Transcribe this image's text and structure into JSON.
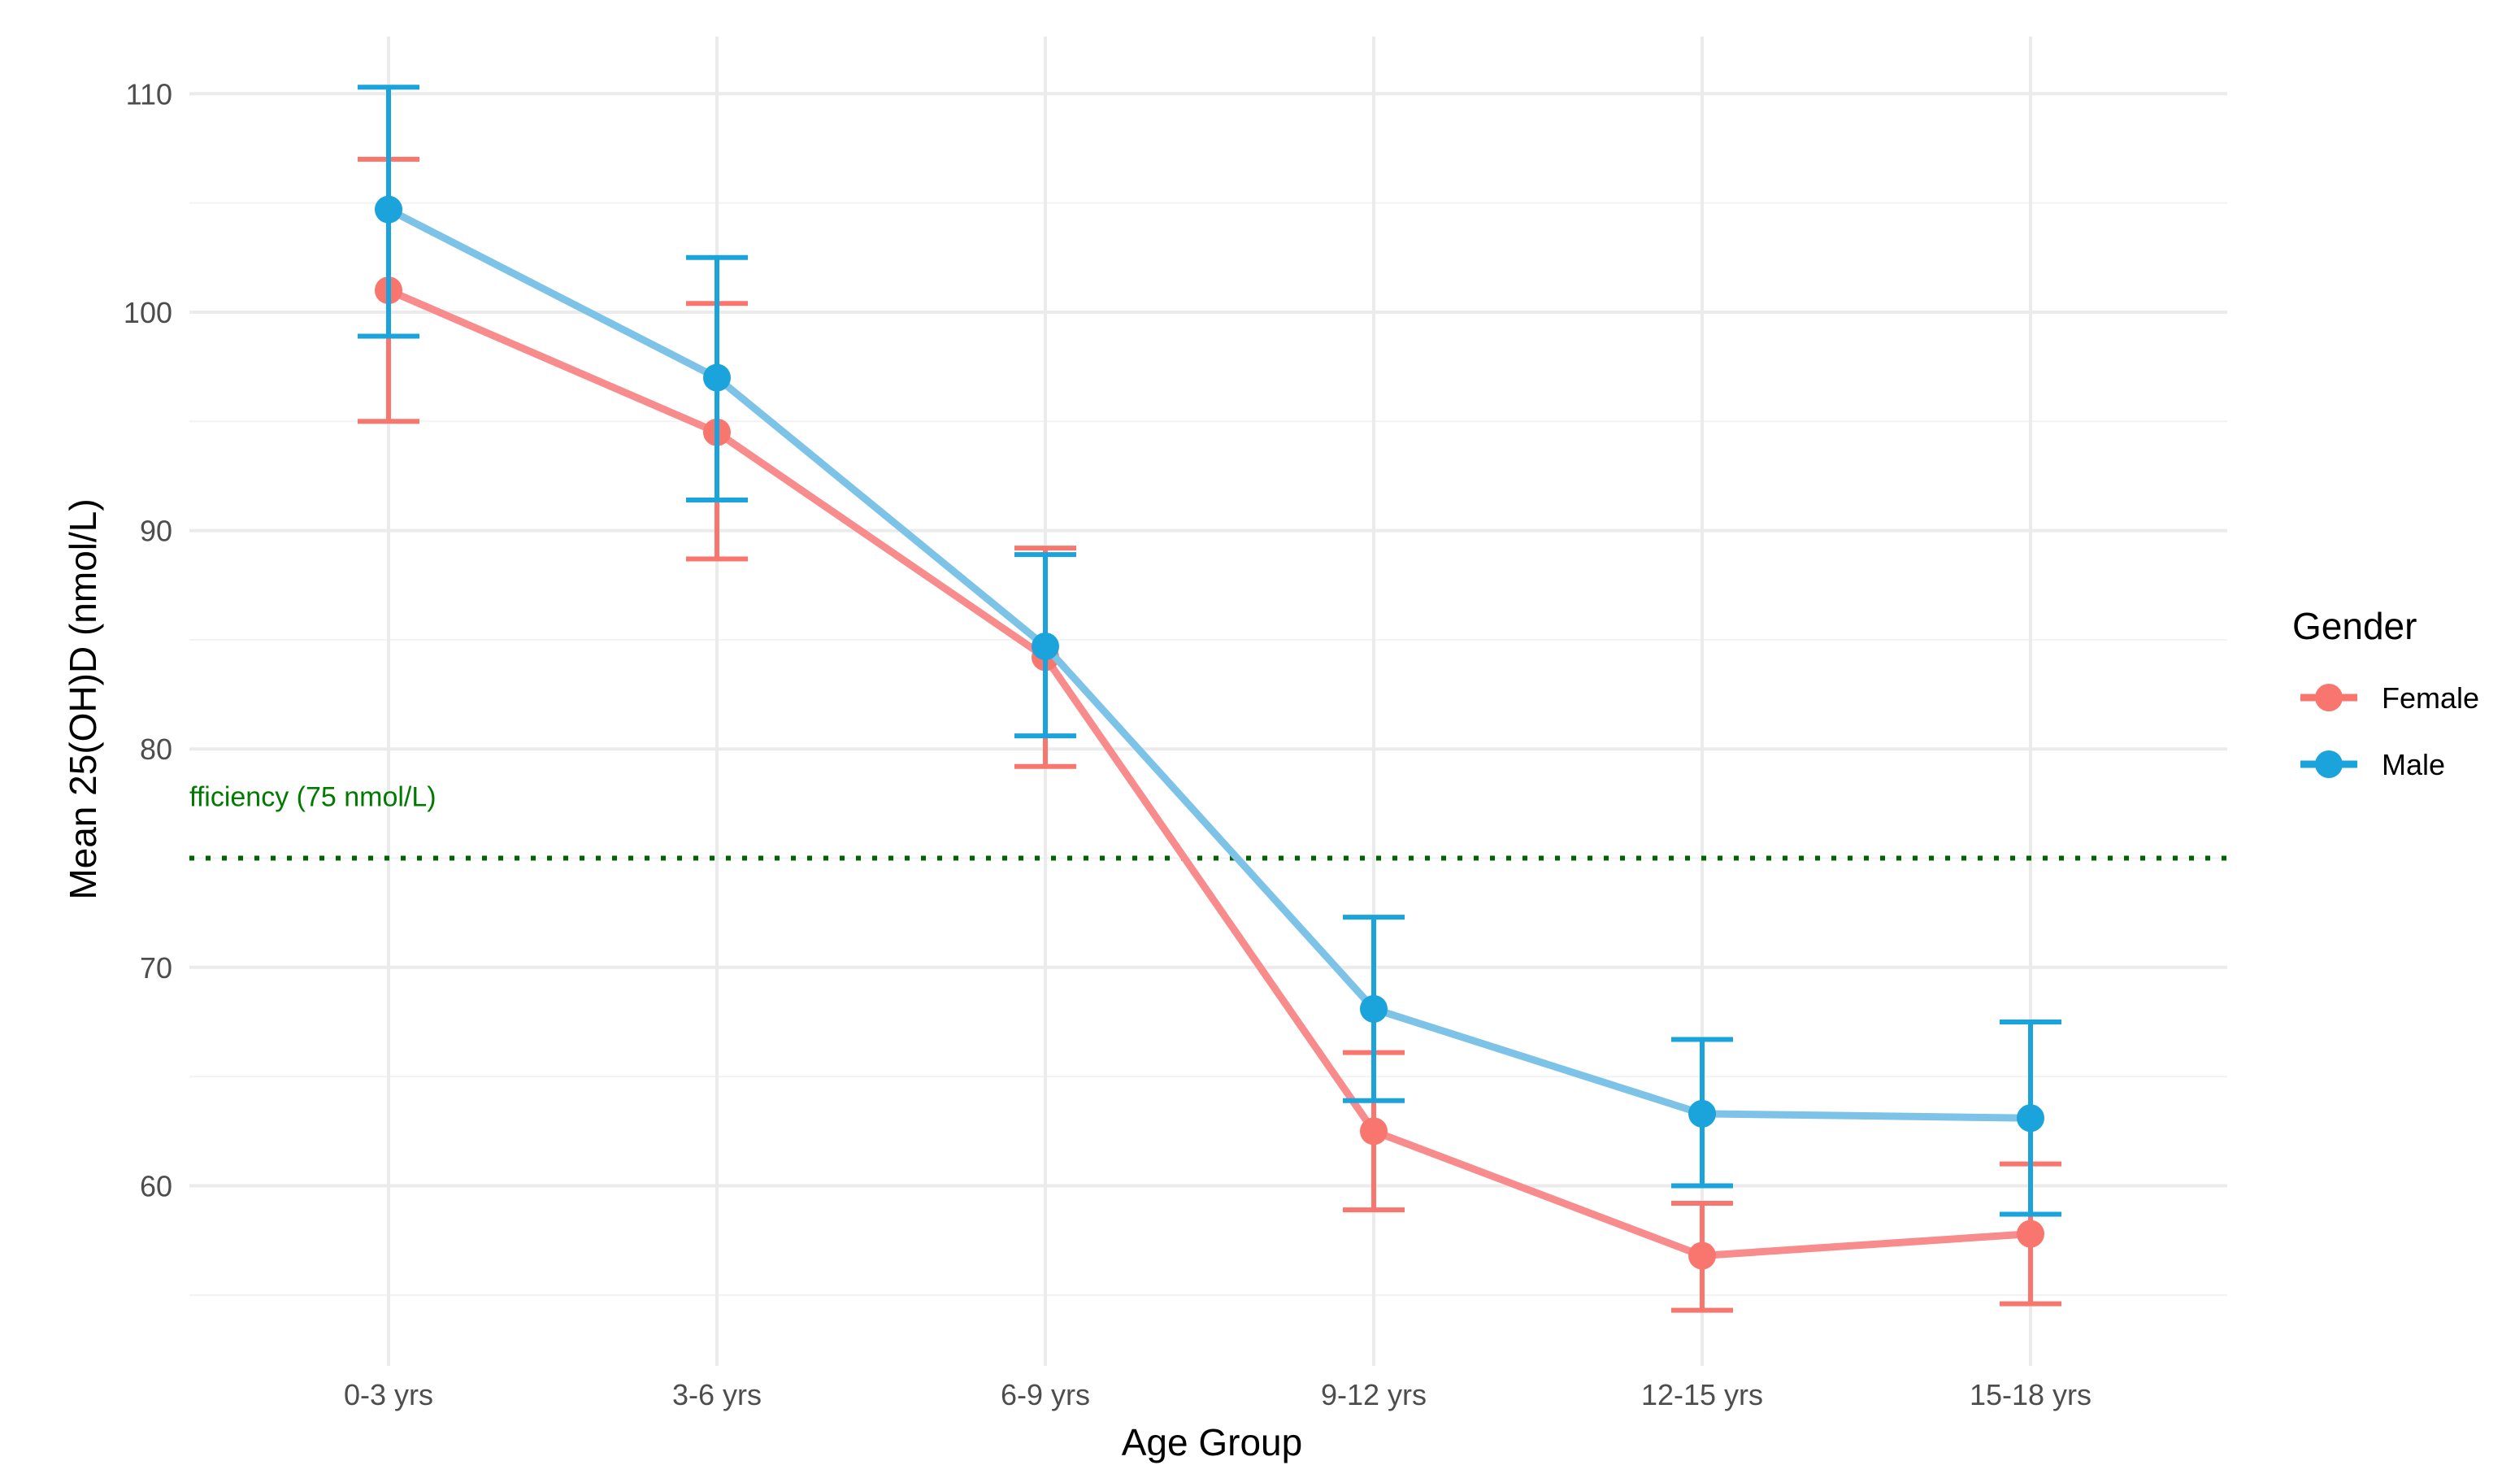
{
  "chart_data": {
    "type": "line",
    "title": "",
    "xlabel": "Age Group",
    "ylabel": "Mean 25(OH)D (nmol/L)",
    "categories": [
      "0-3 yrs",
      "3-6 yrs",
      "6-9 yrs",
      "9-12 yrs",
      "12-15 yrs",
      "15-18 yrs"
    ],
    "ylim": [
      52.5,
      111.5
    ],
    "yticks": [
      60,
      70,
      80,
      90,
      100,
      110
    ],
    "ytick_labels": [
      "60",
      "70",
      "80",
      "90",
      "100",
      "110"
    ],
    "grid": true,
    "legend": {
      "title": "Gender",
      "position": "right"
    },
    "series": [
      {
        "name": "Female",
        "color": "#F8766D",
        "line_color": "#F88B8B",
        "values": [
          101.0,
          94.5,
          84.2,
          62.5,
          56.8,
          57.8
        ],
        "error_low": [
          95.0,
          88.7,
          79.2,
          58.9,
          54.3,
          54.6
        ],
        "error_high": [
          107.0,
          100.4,
          89.2,
          66.1,
          59.2,
          61.0
        ]
      },
      {
        "name": "Male",
        "color": "#1BA3DB",
        "line_color": "#7DC3E8",
        "values": [
          104.7,
          97.0,
          84.7,
          68.1,
          63.3,
          63.1
        ],
        "error_low": [
          98.9,
          91.4,
          80.6,
          63.9,
          60.0,
          58.7
        ],
        "error_high": [
          110.3,
          102.5,
          88.9,
          72.3,
          66.7,
          67.5
        ]
      }
    ],
    "reference_line": {
      "value": 75,
      "label": "fficiency (75 nmol/L)",
      "color": "#006400",
      "style": "dotted"
    }
  }
}
